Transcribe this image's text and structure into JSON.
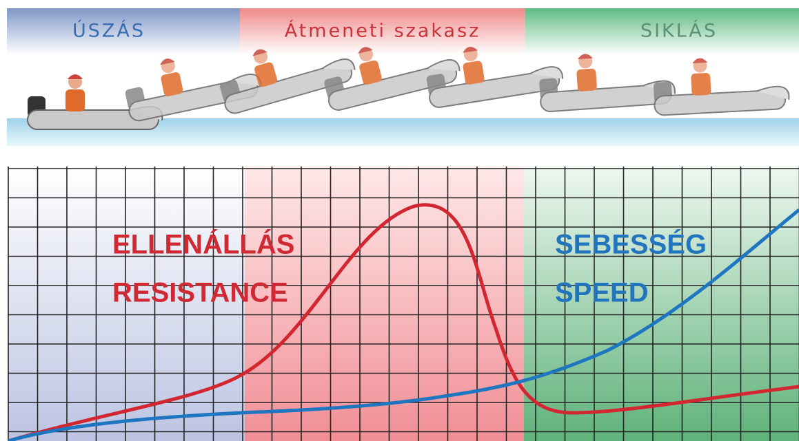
{
  "header": {
    "sections": [
      {
        "label": "ÚSZÁS"
      },
      {
        "label": "Átmeneti szakasz"
      },
      {
        "label": "SIKLÁS"
      }
    ]
  },
  "curves": {
    "resistance": {
      "labels": [
        "ELLENÁLLÁS",
        "RESISTANCE"
      ]
    },
    "speed": {
      "labels": [
        "SEBESSÉG",
        "SPEED"
      ]
    }
  }
}
